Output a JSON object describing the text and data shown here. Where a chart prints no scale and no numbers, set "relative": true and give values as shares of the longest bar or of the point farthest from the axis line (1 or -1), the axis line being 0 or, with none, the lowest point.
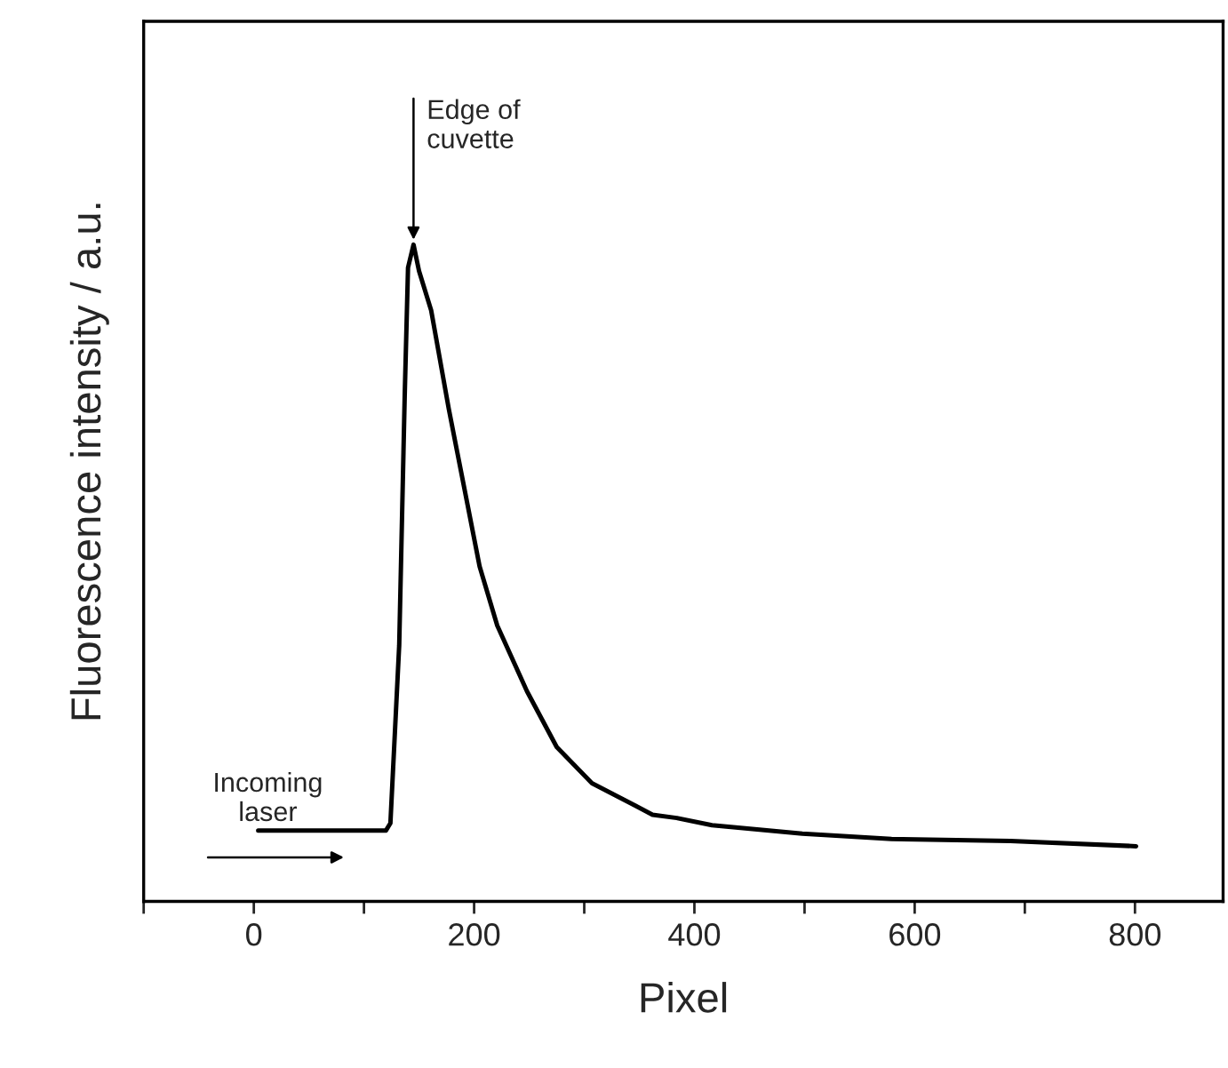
{
  "chart_data": {
    "type": "line",
    "relative": true,
    "xlabel": "Pixel",
    "ylabel": "Fluorescence intensity / a.u.",
    "xlim": [
      -100,
      880
    ],
    "xticks": [
      {
        "value": -100,
        "label": null
      },
      0,
      {
        "value": 100,
        "label": null
      },
      200,
      {
        "value": 300,
        "label": null
      },
      400,
      {
        "value": 500,
        "label": null
      },
      600,
      {
        "value": 700,
        "label": null
      },
      800
    ],
    "tick_labels": "x",
    "grid": false,
    "legend": false,
    "marker": "none",
    "line_style": "solid",
    "series": [
      {
        "color": "#000000",
        "x": [
          4,
          60,
          120,
          124,
          132,
          137,
          140,
          145,
          150,
          161,
          177,
          191,
          205,
          221,
          248,
          275,
          307,
          346,
          362,
          384,
          416,
          498,
          579,
          687,
          801
        ],
        "values": [
          0.108,
          0.108,
          0.108,
          0.119,
          0.39,
          0.77,
          0.965,
          1.0,
          0.96,
          0.9,
          0.75,
          0.63,
          0.51,
          0.42,
          0.32,
          0.235,
          0.18,
          0.146,
          0.132,
          0.127,
          0.116,
          0.103,
          0.095,
          0.092,
          0.084
        ]
      }
    ],
    "annotations": [
      {
        "text": "Edge of\ncuvette",
        "x": 145,
        "y": 1.0
      },
      "Incoming\nlaser"
    ]
  }
}
